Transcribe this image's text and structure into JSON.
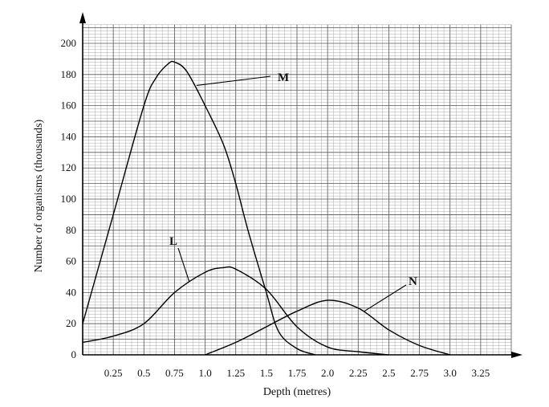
{
  "chart_data": {
    "type": "line",
    "xlabel": "Depth (metres)",
    "ylabel": "Number of organisms (thousands)",
    "xlim": [
      0,
      3.5
    ],
    "ylim": [
      0,
      200
    ],
    "xticks": [
      0.25,
      0.5,
      0.75,
      1.0,
      1.25,
      1.5,
      1.75,
      2.0,
      2.25,
      2.5,
      2.75,
      3.0,
      3.25
    ],
    "xtick_labels": [
      "0.25",
      "0.5",
      "0.75",
      "1.0",
      "1.25",
      "1.5",
      "1.75",
      "2.0",
      "2.25",
      "2.5",
      "2.75",
      "3.0",
      "3.25"
    ],
    "yticks": [
      0,
      20,
      40,
      60,
      80,
      100,
      120,
      140,
      160,
      180,
      200
    ],
    "ytick_labels": [
      "0",
      "20",
      "40",
      "60",
      "80",
      "100",
      "120",
      "140",
      "160",
      "180",
      "200"
    ],
    "grid": true,
    "series": [
      {
        "name": "M",
        "x": [
          0,
          0.25,
          0.5,
          0.6,
          0.7,
          0.75,
          0.85,
          1.0,
          1.15,
          1.25,
          1.35,
          1.5,
          1.6,
          1.75,
          1.9
        ],
        "y": [
          20,
          90,
          160,
          178,
          187,
          188,
          182,
          160,
          135,
          110,
          80,
          40,
          15,
          4,
          0
        ]
      },
      {
        "name": "L",
        "x": [
          0,
          0.25,
          0.5,
          0.75,
          1.0,
          1.15,
          1.25,
          1.5,
          1.75,
          2.0,
          2.25,
          2.5
        ],
        "y": [
          8,
          12,
          20,
          40,
          53,
          56,
          55,
          42,
          18,
          5,
          2,
          0
        ]
      },
      {
        "name": "N",
        "x": [
          1.0,
          1.25,
          1.5,
          1.75,
          2.0,
          2.25,
          2.5,
          2.75,
          3.0
        ],
        "y": [
          0,
          8,
          18,
          28,
          35,
          30,
          16,
          6,
          0
        ]
      }
    ]
  }
}
